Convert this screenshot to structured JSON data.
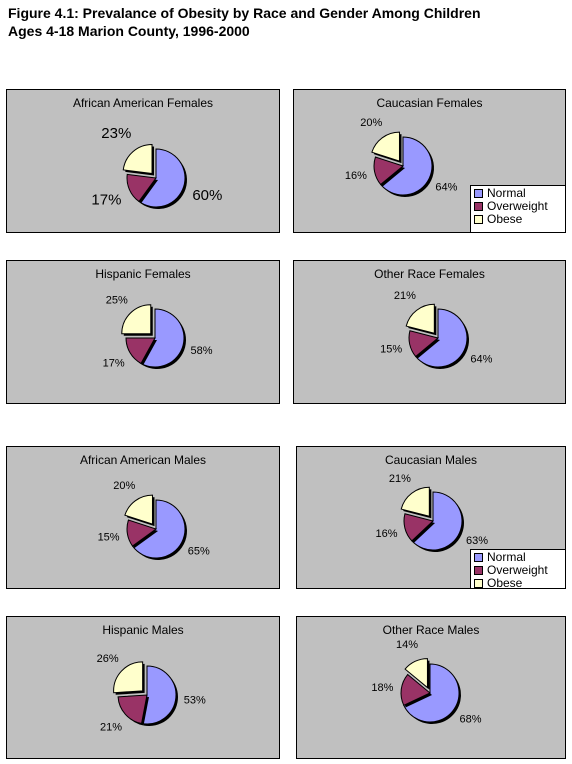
{
  "figure": {
    "title_line1": "Figure 4.1:  Prevalance of Obesity by Race and Gender Among Children",
    "title_line2": "Ages 4-18 Marion County, 1996-2000"
  },
  "colors": {
    "Normal": "#9999ff",
    "Overweight": "#993366",
    "Obese": "#ffffcc",
    "panel_bg": "#c0c0c0"
  },
  "legend": {
    "labels": [
      "Normal",
      "Overweight",
      "Obese"
    ],
    "placement": "bottom-right"
  },
  "chart_data": [
    {
      "type": "pie",
      "title": "African American Females",
      "categories": [
        "Normal",
        "Overweight",
        "Obese"
      ],
      "values": [
        60,
        17,
        23
      ],
      "data_labels": [
        "60%",
        "17%",
        "23%"
      ],
      "exploded": "Obese"
    },
    {
      "type": "pie",
      "title": "Caucasian Females",
      "categories": [
        "Normal",
        "Overweight",
        "Obese"
      ],
      "values": [
        64,
        16,
        20
      ],
      "data_labels": [
        "64%",
        "16%",
        "20%"
      ],
      "exploded": "Obese",
      "legend": true
    },
    {
      "type": "pie",
      "title": "Hispanic Females",
      "categories": [
        "Normal",
        "Overweight",
        "Obese"
      ],
      "values": [
        58,
        17,
        25
      ],
      "data_labels": [
        "58%",
        "17%",
        "25%"
      ],
      "exploded": "Obese"
    },
    {
      "type": "pie",
      "title": "Other Race Females",
      "categories": [
        "Normal",
        "Overweight",
        "Obese"
      ],
      "values": [
        64,
        15,
        21
      ],
      "data_labels": [
        "64%",
        "15%",
        "21%"
      ],
      "exploded": "Obese"
    },
    {
      "type": "pie",
      "title": "African American Males",
      "categories": [
        "Normal",
        "Overweight",
        "Obese"
      ],
      "values": [
        65,
        15,
        20
      ],
      "data_labels": [
        "65%",
        "15%",
        "20%"
      ],
      "exploded": "Obese"
    },
    {
      "type": "pie",
      "title": "Caucasian Males",
      "categories": [
        "Normal",
        "Overweight",
        "Obese"
      ],
      "values": [
        63,
        16,
        21
      ],
      "data_labels": [
        "63%",
        "16%",
        "21%"
      ],
      "exploded": "Obese",
      "legend": true
    },
    {
      "type": "pie",
      "title": "Hispanic Males",
      "categories": [
        "Normal",
        "Overweight",
        "Obese"
      ],
      "values": [
        53,
        21,
        26
      ],
      "data_labels": [
        "53%",
        "21%",
        "26%"
      ],
      "exploded": "Obese"
    },
    {
      "type": "pie",
      "title": "Other Race Males",
      "categories": [
        "Normal",
        "Overweight",
        "Obese"
      ],
      "values": [
        68,
        18,
        14
      ],
      "data_labels": [
        "68%",
        "18%",
        "14%"
      ],
      "exploded": "Obese"
    }
  ]
}
